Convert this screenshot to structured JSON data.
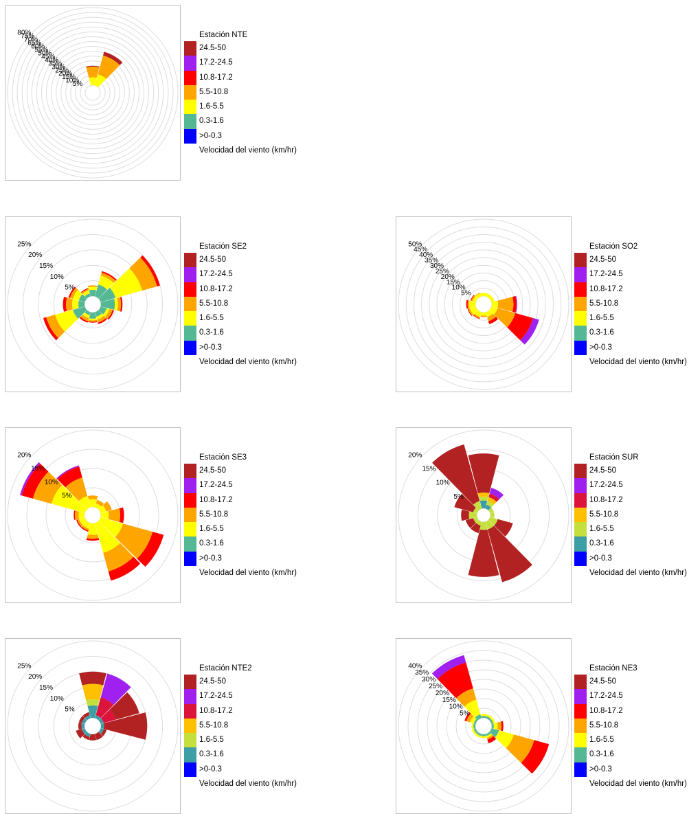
{
  "bins": [
    "24.5-50",
    "17.2-24.5",
    "10.8-17.2",
    "5.5-10.8",
    "1.6-5.5",
    "0.3-1.6",
    ">0-0.3"
  ],
  "unit_label": "Velocidad del viento (km/hr)",
  "chart_data": [
    {
      "type": "wind-rose",
      "id": "nte",
      "title": "Estación NTE",
      "ring_labels": [
        "5%",
        "10%",
        "15%",
        "20%",
        "25%",
        "30%",
        "35%",
        "40%",
        "45%",
        "50%",
        "55%",
        "60%",
        "65%",
        "70%",
        "75%",
        "80%"
      ],
      "rmax": 80,
      "colors": [
        "#b22222",
        "#a020f0",
        "#ff0000",
        "#ffa500",
        "#ffff00",
        "#54b894",
        "#0000ff"
      ],
      "directions": [
        0,
        30
      ],
      "stacks": [
        [
          1,
          0,
          0,
          11,
          8,
          0,
          0
        ],
        [
          4,
          0,
          0,
          20,
          12,
          0,
          0
        ]
      ]
    },
    {
      "type": "wind-rose",
      "id": "se2",
      "title": "Estación SE2",
      "ring_labels": [
        "5%",
        "10%",
        "15%",
        "20%",
        "25%"
      ],
      "rmax": 25,
      "colors": [
        "#b22222",
        "#a020f0",
        "#ff0000",
        "#ffa500",
        "#ffff00",
        "#54b894",
        "#0000ff"
      ],
      "directions": [
        0,
        30,
        60,
        90,
        120,
        150,
        180,
        210,
        240,
        270,
        300,
        330
      ],
      "stacks": [
        [
          0,
          0,
          0,
          0.5,
          1,
          2,
          0
        ],
        [
          0,
          0,
          0.5,
          1,
          3,
          4,
          0
        ],
        [
          0,
          0,
          1,
          5,
          9,
          5,
          0
        ],
        [
          0,
          0,
          0.5,
          1,
          1,
          4.5,
          0
        ],
        [
          0,
          0,
          0.5,
          1,
          1,
          2,
          0
        ],
        [
          0,
          0,
          0.5,
          1,
          1,
          1.5,
          0
        ],
        [
          0,
          0,
          0.3,
          0.5,
          0.5,
          2,
          0
        ],
        [
          0,
          0,
          0.5,
          1,
          1,
          1,
          0
        ],
        [
          0,
          0,
          1,
          3,
          6,
          4,
          0
        ],
        [
          0,
          0,
          1,
          2,
          2,
          2,
          0
        ],
        [
          0,
          0,
          0.5,
          1,
          2,
          2,
          0
        ],
        [
          0,
          0,
          0.3,
          0.5,
          1,
          1,
          0
        ]
      ]
    },
    {
      "type": "wind-rose",
      "id": "so2",
      "title": "Estación SO2",
      "ring_labels": [
        "5%",
        "10%",
        "15%",
        "20%",
        "25%",
        "30%",
        "35%",
        "40%",
        "45%",
        "50%"
      ],
      "rmax": 50,
      "colors": [
        "#b22222",
        "#a020f0",
        "#ff0000",
        "#ffa500",
        "#ffff00",
        "#54b894",
        "#0000ff"
      ],
      "directions": [
        0,
        30,
        60,
        90,
        120,
        150,
        180,
        210,
        240,
        270,
        300,
        330
      ],
      "stacks": [
        [
          0,
          0,
          0,
          0,
          2,
          0,
          0
        ],
        [
          0,
          0,
          0,
          0,
          2,
          0,
          0
        ],
        [
          0,
          0,
          0,
          0,
          2,
          0,
          0
        ],
        [
          0,
          0.5,
          2,
          10,
          4,
          0,
          0
        ],
        [
          0,
          4,
          12,
          12,
          4,
          0,
          0
        ],
        [
          0,
          0,
          2,
          3,
          3,
          0,
          0
        ],
        [
          0,
          0,
          0,
          1,
          2,
          0,
          0
        ],
        [
          0,
          0,
          0.5,
          1,
          3,
          0,
          0
        ],
        [
          0,
          0,
          0.5,
          1,
          4,
          0,
          0
        ],
        [
          0,
          0,
          1,
          1,
          4,
          0,
          0
        ],
        [
          0,
          0,
          0.5,
          1,
          2,
          0,
          0
        ],
        [
          0,
          0,
          0,
          0.5,
          2,
          0,
          0
        ]
      ]
    },
    {
      "type": "wind-rose",
      "id": "se3",
      "title": "Estación SE3",
      "ring_labels": [
        "5%",
        "10%",
        "15%",
        "20%"
      ],
      "rmax": 20,
      "colors": [
        "#b22222",
        "#a020f0",
        "#ff0000",
        "#ffa500",
        "#ffff00",
        "#54b894",
        "#0000ff"
      ],
      "directions": [
        0,
        30,
        60,
        90,
        120,
        150,
        180,
        210,
        240,
        270,
        300,
        330
      ],
      "stacks": [
        [
          0,
          0,
          0,
          1,
          2,
          0,
          0
        ],
        [
          0,
          0,
          0,
          1,
          1,
          0,
          0
        ],
        [
          0,
          0,
          0,
          1.5,
          1.5,
          0,
          0
        ],
        [
          0,
          0,
          1,
          3,
          2,
          0,
          0
        ],
        [
          0,
          0,
          3,
          8,
          6,
          0,
          0
        ],
        [
          0,
          0,
          2.5,
          5,
          8,
          0,
          0
        ],
        [
          0,
          0,
          0.5,
          1,
          3,
          0,
          0
        ],
        [
          0,
          0,
          0.3,
          0.5,
          1.5,
          0,
          0
        ],
        [
          0,
          0,
          0.3,
          0.5,
          1.5,
          0,
          0
        ],
        [
          0,
          0,
          0.3,
          1,
          1.5,
          0,
          0
        ],
        [
          0,
          0.5,
          3,
          5,
          9,
          0,
          0
        ],
        [
          0,
          0.3,
          3,
          5,
          3,
          0,
          0
        ]
      ]
    },
    {
      "type": "wind-rose",
      "id": "sur",
      "title": "Estación SUR",
      "ring_labels": [
        "5%",
        "10%",
        "15%",
        "20%"
      ],
      "rmax": 20,
      "colors": [
        "#b22222",
        "#a020f0",
        "#dc143c",
        "#ffc000",
        "#c5e03d",
        "#3e9ea6",
        "#0000ff"
      ],
      "directions": [
        0,
        30,
        60,
        90,
        120,
        150,
        180,
        210,
        240,
        270,
        300,
        330
      ],
      "stacks": [
        [
          10,
          0,
          0,
          1,
          1,
          2,
          0
        ],
        [
          0,
          1.5,
          1,
          1,
          1,
          1,
          0
        ],
        [
          0,
          0,
          0,
          0,
          1,
          0,
          0
        ],
        [
          0,
          0,
          0,
          0,
          1,
          0,
          0
        ],
        [
          4,
          0,
          0,
          0,
          2,
          0,
          0
        ],
        [
          14,
          0,
          0,
          0,
          2,
          0,
          0
        ],
        [
          12,
          0,
          0,
          0,
          2,
          0,
          0
        ],
        [
          2,
          0,
          0,
          0,
          1,
          0,
          0
        ],
        [
          2,
          0,
          0,
          0,
          1,
          0,
          0
        ],
        [
          2,
          0,
          0,
          0,
          2,
          0,
          0
        ],
        [
          5,
          0,
          0,
          0,
          1,
          0,
          0
        ],
        [
          15,
          0,
          0,
          0,
          2,
          0,
          0
        ]
      ]
    },
    {
      "type": "wind-rose",
      "id": "nte2",
      "title": "Estación NTE2",
      "ring_labels": [
        "5%",
        "10%",
        "15%",
        "20%",
        "25%"
      ],
      "rmax": 25,
      "colors": [
        "#b22222",
        "#a020f0",
        "#dc143c",
        "#ffc000",
        "#c5e03d",
        "#3e9ea6",
        "#0000ff"
      ],
      "directions": [
        0,
        30,
        60,
        90,
        120,
        150,
        180,
        210,
        240,
        270,
        300,
        330
      ],
      "stacks": [
        [
          4,
          0,
          0,
          5,
          2,
          4,
          0
        ],
        [
          0,
          8,
          6,
          0,
          0,
          1,
          0
        ],
        [
          8,
          0,
          4,
          0,
          0,
          1,
          0
        ],
        [
          14,
          0,
          0,
          0,
          0,
          1,
          0
        ],
        [
          1,
          0,
          0,
          0,
          0,
          1,
          0
        ],
        [
          2,
          0,
          0,
          0,
          0,
          0,
          0
        ],
        [
          2,
          0,
          0,
          0,
          0,
          0,
          0
        ],
        [
          1,
          0,
          0,
          0,
          0,
          1,
          0
        ],
        [
          2,
          0,
          0,
          0,
          0,
          1,
          0
        ],
        [
          1,
          0,
          0,
          0,
          0,
          1,
          0
        ],
        [
          1,
          0,
          0,
          0,
          0,
          1,
          0
        ],
        [
          1,
          0,
          0,
          0,
          0,
          1,
          0
        ]
      ]
    },
    {
      "type": "wind-rose",
      "id": "ne3",
      "title": "Estación NE3",
      "ring_labels": [
        "5%",
        "10%",
        "15%",
        "20%",
        "25%",
        "30%",
        "35%",
        "40%"
      ],
      "rmax": 40,
      "colors": [
        "#b22222",
        "#a020f0",
        "#ff0000",
        "#ffa500",
        "#ffff00",
        "#54b894",
        "#0000ff"
      ],
      "directions": [
        0,
        30,
        60,
        90,
        120,
        150,
        180,
        210,
        240,
        270,
        300,
        330
      ],
      "stacks": [
        [
          0,
          0,
          0,
          0,
          1,
          1,
          0
        ],
        [
          0,
          0,
          0,
          0,
          1,
          1,
          0
        ],
        [
          0,
          0,
          0,
          0,
          1,
          1,
          0
        ],
        [
          0,
          0,
          1,
          2,
          2,
          1,
          0
        ],
        [
          0,
          0,
          8,
          11,
          8,
          4,
          0
        ],
        [
          0,
          0,
          2,
          1,
          1,
          1,
          0
        ],
        [
          0,
          0,
          0,
          0,
          1,
          1,
          0
        ],
        [
          0,
          0,
          0,
          0,
          1,
          1,
          0
        ],
        [
          0,
          0,
          0,
          0,
          1,
          1,
          0
        ],
        [
          0,
          0,
          0,
          0,
          1,
          1,
          0
        ],
        [
          0,
          0,
          1,
          2,
          2,
          1,
          0
        ],
        [
          0,
          4,
          14,
          6,
          8,
          2,
          0
        ]
      ]
    }
  ]
}
